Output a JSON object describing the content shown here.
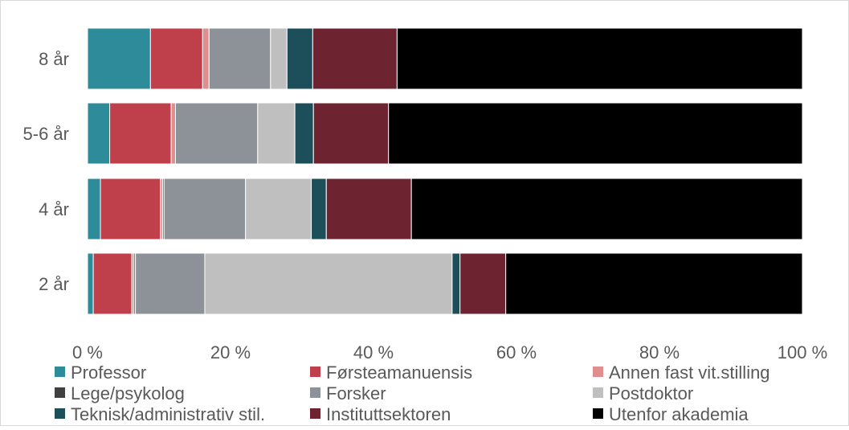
{
  "chart_data": {
    "type": "bar",
    "orientation": "horizontal",
    "stacked": "100%",
    "categories": [
      "8 år",
      "5-6 år",
      "4 år",
      "2 år"
    ],
    "xlim": [
      0,
      100
    ],
    "xticks": [
      {
        "value": 0,
        "label": "0 %"
      },
      {
        "value": 20,
        "label": "20 %"
      },
      {
        "value": 40,
        "label": "40 %"
      },
      {
        "value": 60,
        "label": "60 %"
      },
      {
        "value": 80,
        "label": "80 %"
      },
      {
        "value": 100,
        "label": "100 %"
      }
    ],
    "grid": false,
    "legend_position": "bottom",
    "series": [
      {
        "name": "Professor",
        "color": "#2e8b99",
        "values": [
          8.8,
          3.1,
          1.8,
          0.8
        ]
      },
      {
        "name": "Førsteamanuensis",
        "color": "#bf3f4b",
        "values": [
          7.3,
          8.6,
          8.4,
          5.4
        ]
      },
      {
        "name": "Annen fast vit.stilling",
        "color": "#e08d8e",
        "values": [
          0.9,
          0.6,
          0.3,
          0.3
        ]
      },
      {
        "name": "Lege/psykolog",
        "color": "#404040",
        "values": [
          0.0,
          0.0,
          0.2,
          0.2
        ]
      },
      {
        "name": "Forsker",
        "color": "#8c9297",
        "values": [
          8.6,
          11.5,
          11.4,
          9.7
        ]
      },
      {
        "name": "Postdoktor",
        "color": "#bfbfbf",
        "values": [
          2.3,
          5.2,
          9.2,
          34.6
        ]
      },
      {
        "name": "Teknisk/administrativ stil.",
        "color": "#1d4f5a",
        "values": [
          3.6,
          2.6,
          2.1,
          1.1
        ]
      },
      {
        "name": "Instituttsektoren",
        "color": "#6e2330",
        "values": [
          11.8,
          10.5,
          11.9,
          6.4
        ]
      },
      {
        "name": "Utenfor akademia",
        "color": "#000000",
        "values": [
          56.7,
          57.9,
          54.7,
          41.5
        ]
      }
    ]
  }
}
